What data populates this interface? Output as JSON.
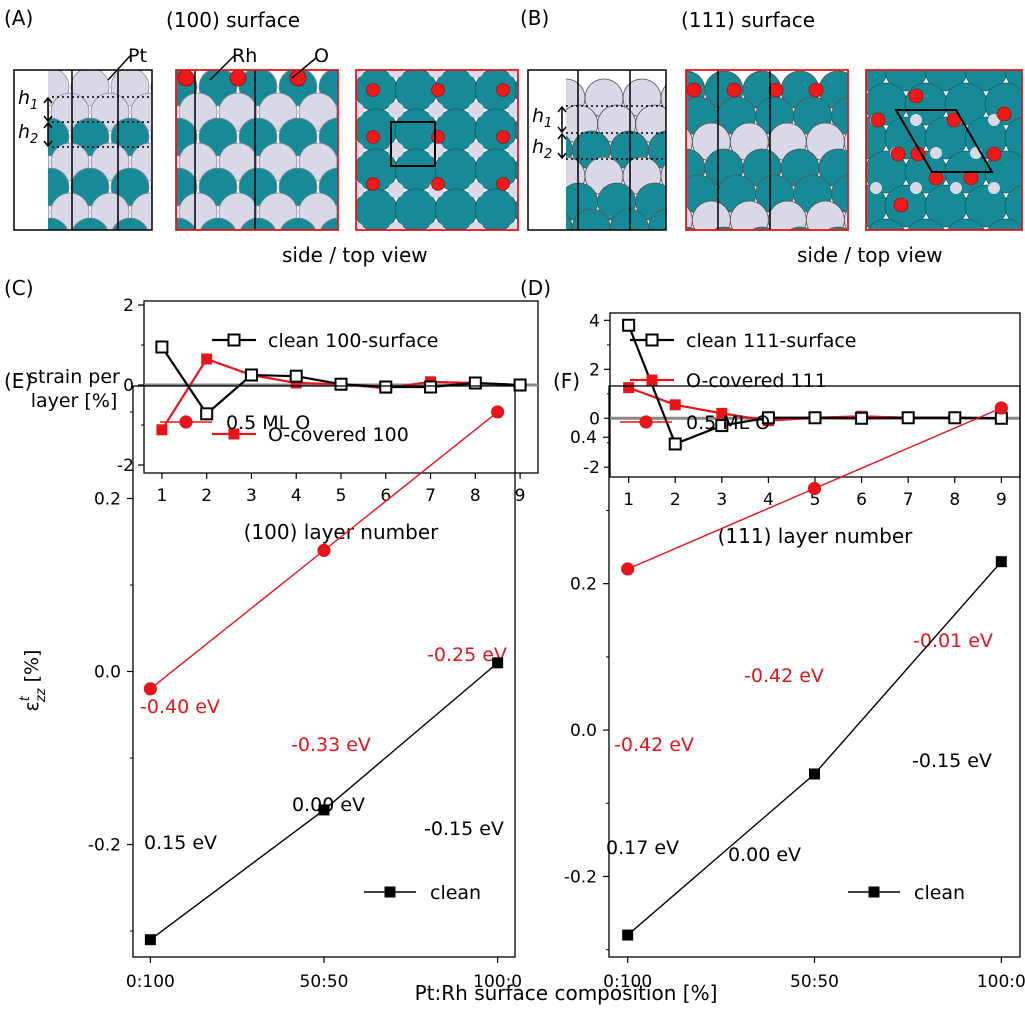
{
  "figure": {
    "panels": {
      "A": {
        "label": "(A)",
        "title": "(100) surface",
        "view_caption": "side / top view",
        "annotations": {
          "pt": "Pt",
          "rh": "Rh",
          "o": "O",
          "h1": "h",
          "h1_sub": "1",
          "h2": "h",
          "h2_sub": "2"
        }
      },
      "B": {
        "label": "(B)",
        "title": "(111) surface",
        "view_caption": "side / top view",
        "annotations": {
          "h1": "h",
          "h1_sub": "1",
          "h2": "h",
          "h2_sub": "2"
        }
      },
      "C": {
        "label": "(C)"
      },
      "D": {
        "label": "(D)"
      },
      "E": {
        "label": "(E)"
      },
      "F": {
        "label": "(F)"
      }
    },
    "colors": {
      "pt": "#d8d8e6",
      "rh": "#168a96",
      "o": "#f01818",
      "clean": "#000000",
      "o_covered": "#e8141c",
      "zero_line": "#888888"
    }
  },
  "chart_data": [
    {
      "panel": "C",
      "type": "line",
      "xlabel": "(100) layer number",
      "ylabel_lines": [
        "strain per",
        "layer [%]"
      ],
      "xlim": [
        0.6,
        9.4
      ],
      "ylim": [
        -2.2,
        2.1
      ],
      "x_ticks": [
        1,
        2,
        3,
        4,
        5,
        6,
        7,
        8,
        9
      ],
      "y_ticks": [
        -2,
        0,
        2
      ],
      "x": [
        1,
        2,
        3,
        4,
        5,
        6,
        7,
        8,
        9
      ],
      "series": [
        {
          "name": "clean 100-surface",
          "marker": "open-square",
          "color": "#000000",
          "values": [
            0.95,
            -0.72,
            0.25,
            0.22,
            0.02,
            -0.05,
            -0.05,
            0.05,
            0.0
          ]
        },
        {
          "name": "O-covered 100",
          "marker": "filled-square",
          "color": "#e8141c",
          "values": [
            -1.12,
            0.65,
            0.25,
            0.05,
            0.02,
            -0.08,
            0.08,
            0.05,
            0.0
          ]
        }
      ],
      "legend": "inside"
    },
    {
      "panel": "D",
      "type": "line",
      "xlabel": "(111) layer number",
      "ylabel_lines": [],
      "xlim": [
        0.6,
        9.4
      ],
      "ylim": [
        -2.4,
        4.3
      ],
      "x_ticks": [
        1,
        2,
        3,
        4,
        5,
        6,
        7,
        8,
        9
      ],
      "y_ticks": [
        -2,
        0,
        2,
        4
      ],
      "x": [
        1,
        2,
        3,
        4,
        5,
        6,
        7,
        8,
        9
      ],
      "series": [
        {
          "name": "clean 111-surface",
          "marker": "open-square",
          "color": "#000000",
          "values": [
            3.8,
            -1.05,
            -0.3,
            0.02,
            0.02,
            0.0,
            0.02,
            0.02,
            0.0
          ]
        },
        {
          "name": "O-covered 111",
          "marker": "filled-square",
          "color": "#e8141c",
          "values": [
            1.25,
            0.55,
            0.2,
            -0.1,
            0.02,
            0.08,
            0.02,
            0.02,
            0.0
          ]
        }
      ],
      "legend": "inside"
    },
    {
      "panel": "E",
      "type": "line",
      "xlabel": "",
      "ylabel_main": "ε",
      "ylabel_sup": "t",
      "ylabel_sub": "zz",
      "ylabel_unit": " [%]",
      "xlim": [
        -0.1,
        2.1
      ],
      "ylim": [
        -0.33,
        0.33
      ],
      "categories": [
        "0:100",
        "50:50",
        "100:0"
      ],
      "y_ticks": [
        -0.2,
        0.0,
        0.2
      ],
      "y_tick_labels": [
        "-0.2",
        "0.0",
        "0.2"
      ],
      "series": [
        {
          "name": "0.5 ML O",
          "marker": "circle",
          "color": "#e8141c",
          "values": [
            -0.02,
            0.14,
            0.3
          ],
          "point_labels": [
            "-0.40 eV",
            "-0.33 eV",
            "-0.25 eV"
          ]
        },
        {
          "name": "clean",
          "marker": "filled-square",
          "color": "#000000",
          "values": [
            -0.31,
            -0.16,
            0.01
          ],
          "point_labels": [
            "0.15 eV",
            "0.00 eV",
            "-0.15 eV"
          ]
        }
      ]
    },
    {
      "panel": "F",
      "type": "line",
      "xlabel": "",
      "ylim": [
        -0.31,
        0.47
      ],
      "xlim": [
        -0.1,
        2.1
      ],
      "categories": [
        "0:100",
        "50:50",
        "100:0"
      ],
      "y_ticks": [
        -0.2,
        0.0,
        0.2,
        0.4
      ],
      "y_tick_labels": [
        "-0.2",
        "0.0",
        "0.2",
        "0.4"
      ],
      "series": [
        {
          "name": "0.5 ML O",
          "marker": "circle",
          "color": "#e8141c",
          "values": [
            0.22,
            0.33,
            0.44
          ],
          "point_labels": [
            "-0.42 eV",
            "-0.42 eV",
            "-0.01 eV"
          ]
        },
        {
          "name": "clean",
          "marker": "filled-square",
          "color": "#000000",
          "values": [
            -0.28,
            -0.06,
            0.23
          ],
          "point_labels": [
            "0.17 eV",
            "0.00 eV",
            "-0.15 eV"
          ]
        }
      ]
    }
  ],
  "shared_xlabel": "Pt:Rh surface composition [%]"
}
